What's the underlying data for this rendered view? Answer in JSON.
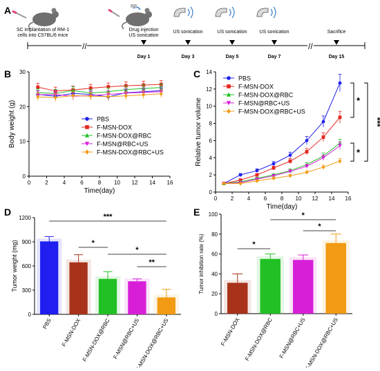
{
  "colors": {
    "blue": "#1f1ff0",
    "red": "#e5261f",
    "green": "#22c025",
    "magenta": "#d81fd8",
    "orange": "#f19a12",
    "brown": "#a8321a"
  },
  "timeline": {
    "letter": "A",
    "items": [
      {
        "top": "SC implantation of RM-1",
        "top2": "cells into C57BL/6 mice"
      },
      {
        "top": "Drug injection",
        "top2": "US sonication",
        "day": "Day 1"
      },
      {
        "top": "US sonication",
        "day": "Day 3"
      },
      {
        "top": "US sonication",
        "day": "Day 5"
      },
      {
        "top": "US sonication",
        "day": "Day 7"
      },
      {
        "top": "Sacrifice",
        "day": "Day 15"
      }
    ]
  },
  "chart_data": [
    {
      "panel": "B",
      "type": "line",
      "xlabel": "Time(day)",
      "ylabel": "Body weight (g)",
      "xlim": [
        0,
        16
      ],
      "ylim": [
        0,
        30
      ],
      "xticks": [
        0,
        2,
        4,
        6,
        8,
        10,
        12,
        14,
        16
      ],
      "yticks": [
        0,
        10,
        20,
        30
      ],
      "x": [
        1,
        3,
        5,
        7,
        9,
        11,
        13,
        15
      ],
      "legend_position": "center",
      "series": [
        {
          "name": "PBS",
          "color": "blue",
          "marker": "circle",
          "values": [
            23.5,
            23.0,
            23.8,
            23.5,
            22.8,
            24.0,
            24.3,
            24.6
          ]
        },
        {
          "name": "F-MSN-DOX",
          "color": "red",
          "marker": "square",
          "values": [
            25.6,
            24.5,
            24.8,
            25.3,
            25.7,
            26.0,
            26.2,
            26.4
          ]
        },
        {
          "name": "F-MSN-DOX@RBC",
          "color": "green",
          "marker": "triangle",
          "values": [
            24.0,
            23.8,
            24.6,
            23.9,
            24.3,
            24.9,
            25.2,
            25.5
          ]
        },
        {
          "name": "F-MSN@RBC+US",
          "color": "magenta",
          "marker": "triangle-down",
          "values": [
            23.4,
            23.5,
            23.0,
            23.2,
            23.5,
            23.9,
            24.1,
            24.3
          ]
        },
        {
          "name": "F-MSN-DOX@RBC+US",
          "color": "orange",
          "marker": "diamond",
          "values": [
            22.8,
            22.6,
            23.2,
            23.0,
            22.9,
            23.1,
            23.4,
            23.7
          ]
        }
      ]
    },
    {
      "panel": "C",
      "type": "line",
      "xlabel": "Time(day)",
      "ylabel": "Relative tumor volume",
      "xlim": [
        0,
        16
      ],
      "ylim": [
        0,
        14
      ],
      "xticks": [
        0,
        2,
        4,
        6,
        8,
        10,
        12,
        14,
        16
      ],
      "yticks": [
        0,
        2,
        4,
        6,
        8,
        10,
        12,
        14
      ],
      "x": [
        1,
        3,
        5,
        7,
        9,
        11,
        13,
        15
      ],
      "legend_position": "top-left",
      "significance": [
        "*",
        "*",
        "***"
      ],
      "series": [
        {
          "name": "PBS",
          "color": "blue",
          "marker": "circle",
          "values": [
            1.0,
            2.0,
            2.5,
            3.3,
            4.3,
            6.0,
            8.2,
            12.7
          ]
        },
        {
          "name": "F-MSN-DOX",
          "color": "red",
          "marker": "square",
          "values": [
            1.0,
            1.4,
            2.0,
            2.8,
            3.6,
            4.7,
            6.4,
            8.7
          ]
        },
        {
          "name": "F-MSN-DOX@RBC",
          "color": "green",
          "marker": "triangle",
          "values": [
            1.0,
            1.2,
            1.6,
            2.0,
            2.5,
            3.2,
            4.2,
            5.7
          ]
        },
        {
          "name": "F-MSN@RBC+US",
          "color": "magenta",
          "marker": "triangle-down",
          "values": [
            1.0,
            1.1,
            1.5,
            1.9,
            2.4,
            3.0,
            4.0,
            5.4
          ]
        },
        {
          "name": "F-MSN-DOX@RBC+US",
          "color": "orange",
          "marker": "diamond",
          "values": [
            1.0,
            1.0,
            1.3,
            1.6,
            1.9,
            2.3,
            2.9,
            3.6
          ]
        }
      ]
    },
    {
      "panel": "D",
      "type": "bar",
      "ylabel": "Tumor weight (mg)",
      "ylim": [
        0,
        1200
      ],
      "yticks": [
        0,
        300,
        600,
        900,
        1200
      ],
      "categories": [
        "PBS",
        "F-MSN-DOX",
        "F-MSN-DOX@RBC",
        "F-MSN@RBC+US",
        "F-MSN-DOX@RBC+US"
      ],
      "values": [
        905,
        645,
        440,
        410,
        210
      ],
      "errors": [
        60,
        95,
        90,
        30,
        100
      ],
      "colors": [
        "blue",
        "brown",
        "green",
        "magenta",
        "orange"
      ],
      "significance": [
        {
          "from": 0,
          "to": 4,
          "label": "***"
        },
        {
          "from": 1,
          "to": 2,
          "label": "*"
        },
        {
          "from": 2,
          "to": 4,
          "label": "*"
        },
        {
          "from": 3,
          "to": 4,
          "label": "**"
        }
      ]
    },
    {
      "panel": "E",
      "type": "bar",
      "ylabel": "Tumor inhibition rate (%)",
      "ylim": [
        0,
        100
      ],
      "yticks": [
        0,
        20,
        40,
        60,
        80,
        100
      ],
      "categories": [
        "F-MSN-DOX",
        "F-MSN-DOX@RBC",
        "F-MSN@RBC+US",
        "F-MSN-DOX@RBC+US"
      ],
      "values": [
        31,
        55,
        54,
        71
      ],
      "errors": [
        9,
        5,
        5,
        9
      ],
      "colors": [
        "brown",
        "green",
        "magenta",
        "orange"
      ],
      "significance": [
        {
          "from": 0,
          "to": 1,
          "label": "*"
        },
        {
          "from": 1,
          "to": 3,
          "label": "*"
        },
        {
          "from": 2,
          "to": 3,
          "label": "*"
        }
      ]
    }
  ]
}
